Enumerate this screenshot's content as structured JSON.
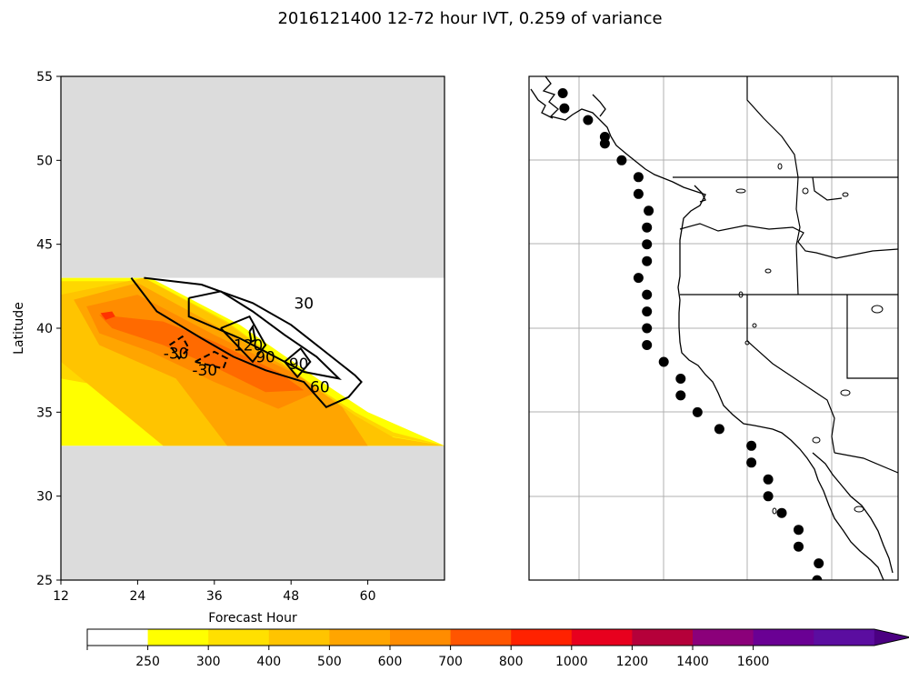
{
  "title": "2016121400 12-72 hour IVT, 0.259 of variance",
  "colors": {
    "missing_band": "#dcdcdc",
    "contour_line": "#000000",
    "map_grid": "#b0b0b0",
    "station_marker": "#000000"
  },
  "chart_data": [
    {
      "type": "heatmap",
      "xlabel": "Forecast Hour",
      "ylabel": "Latitude",
      "xlim": [
        12,
        72
      ],
      "ylim": [
        25,
        55
      ],
      "xticks": [
        12,
        24,
        36,
        48,
        60
      ],
      "yticks": [
        25,
        30,
        35,
        40,
        45,
        50,
        55
      ],
      "missing_bands": [
        {
          "from_lat": 43,
          "to_lat": 55
        },
        {
          "from_lat": 25,
          "to_lat": 33
        }
      ],
      "ivt_levels": [
        {
          "min": 250,
          "color": "#ffff00",
          "polygon": [
            [
              12,
              43
            ],
            [
              26,
              43
            ],
            [
              40,
              40.2
            ],
            [
              54,
              36.5
            ],
            [
              60,
              35
            ],
            [
              72,
              33
            ],
            [
              12,
              33
            ]
          ]
        },
        {
          "min": 300,
          "color": "#ffd700",
          "polygon": [
            [
              12,
              42.8
            ],
            [
              26,
              42.8
            ],
            [
              38,
              40.4
            ],
            [
              50,
              37
            ],
            [
              58,
              35
            ],
            [
              64,
              33.8
            ],
            [
              72,
              33
            ],
            [
              12,
              37
            ]
          ]
        },
        {
          "min": 400,
          "color": "#ffc400",
          "polygon": [
            [
              12,
              42
            ],
            [
              25,
              43
            ],
            [
              38,
              40.3
            ],
            [
              50,
              37
            ],
            [
              58,
              34.8
            ],
            [
              64,
              33.5
            ],
            [
              72,
              33
            ],
            [
              28,
              33
            ],
            [
              12,
              38
            ]
          ]
        },
        {
          "min": 500,
          "color": "#ffa500",
          "polygon": [
            [
              14,
              41.7
            ],
            [
              24,
              42.7
            ],
            [
              36,
              40.2
            ],
            [
              48,
              37.5
            ],
            [
              56,
              35.3
            ],
            [
              60,
              33
            ],
            [
              38,
              33
            ],
            [
              30,
              37
            ],
            [
              18,
              39
            ]
          ]
        },
        {
          "min": 600,
          "color": "#ff8c00",
          "polygon": [
            [
              16,
              41.3
            ],
            [
              24,
              42
            ],
            [
              36,
              39.6
            ],
            [
              48,
              37.4
            ],
            [
              52,
              36.2
            ],
            [
              46,
              35.2
            ],
            [
              36,
              36.8
            ],
            [
              26,
              38.6
            ],
            [
              18,
              39.7
            ]
          ]
        },
        {
          "min": 700,
          "color": "#ff6a00",
          "polygon": [
            [
              18,
              40.8
            ],
            [
              28,
              40.4
            ],
            [
              36,
              39.2
            ],
            [
              46,
              37.4
            ],
            [
              50,
              36.3
            ],
            [
              44,
              36.2
            ],
            [
              36,
              37.7
            ],
            [
              28,
              39
            ],
            [
              20,
              40
            ]
          ]
        },
        {
          "min": 800,
          "color": "#ff3300",
          "polygon": [
            [
              18.2,
              40.9
            ],
            [
              20,
              41
            ],
            [
              20.5,
              40.7
            ],
            [
              19,
              40.5
            ]
          ]
        }
      ],
      "contours": [
        {
          "label": "30",
          "dashed": false,
          "label_at": [
            50,
            41.5
          ],
          "points": [
            [
              25,
              43
            ],
            [
              34,
              42.6
            ],
            [
              42,
              41.5
            ],
            [
              48,
              40.2
            ],
            [
              53,
              38.7
            ],
            [
              58,
              37.2
            ],
            [
              59,
              36.8
            ],
            [
              57,
              35.9
            ],
            [
              53.5,
              35.3
            ],
            [
              50,
              36.8
            ],
            [
              44,
              37.5
            ],
            [
              39,
              38.3
            ],
            [
              34,
              39.4
            ],
            [
              27,
              41
            ],
            [
              23,
              43
            ]
          ]
        },
        {
          "label": "60",
          "dashed": false,
          "label_at": [
            52.5,
            36.5
          ],
          "points": [
            [
              32,
              41.8
            ],
            [
              37,
              42.2
            ],
            [
              42,
              41
            ],
            [
              47,
              39.6
            ],
            [
              52,
              38.3
            ],
            [
              55.5,
              37
            ],
            [
              50,
              37.4
            ],
            [
              45,
              38.4
            ],
            [
              40,
              39.4
            ],
            [
              32,
              40.7
            ],
            [
              32,
              41.8
            ]
          ]
        },
        {
          "label": "90",
          "dashed": false,
          "label_at": [
            44,
            38.3
          ],
          "points": [
            [
              37,
              40
            ],
            [
              41.5,
              40.7
            ],
            [
              44,
              39
            ],
            [
              42,
              38
            ],
            [
              37,
              40
            ]
          ]
        },
        {
          "label": "90",
          "dashed": false,
          "label_at": [
            49.2,
            37.9
          ],
          "points": [
            [
              47,
              38
            ],
            [
              49.5,
              38.8
            ],
            [
              51,
              38
            ],
            [
              49,
              37.1
            ],
            [
              47,
              38
            ]
          ]
        },
        {
          "label": "120",
          "dashed": false,
          "label_at": [
            41.3,
            39
          ],
          "points": [
            [
              41.5,
              39.8
            ],
            [
              42,
              40.1
            ],
            [
              42.4,
              39.3
            ],
            [
              41.8,
              39.2
            ],
            [
              41.5,
              39.8
            ]
          ]
        },
        {
          "label": "-30",
          "dashed": true,
          "label_at": [
            30,
            38.5
          ],
          "points": [
            [
              29,
              39
            ],
            [
              31,
              39.5
            ],
            [
              32,
              38.8
            ],
            [
              30.5,
              38.2
            ],
            [
              29,
              39
            ]
          ]
        },
        {
          "label": "-30",
          "dashed": true,
          "label_at": [
            34.5,
            37.5
          ],
          "points": [
            [
              33,
              38
            ],
            [
              36,
              38.6
            ],
            [
              38,
              38.2
            ],
            [
              37.4,
              37.6
            ],
            [
              33,
              38
            ]
          ]
        }
      ]
    },
    {
      "type": "scatter",
      "series": [
        {
          "values": [
            [
              -129,
              54
            ],
            [
              -128.9,
              53.1
            ],
            [
              -127.5,
              52.4
            ],
            [
              -126.5,
              51.4
            ],
            [
              -126.5,
              51
            ],
            [
              -125.5,
              50
            ],
            [
              -124.5,
              49
            ],
            [
              -124.5,
              48
            ],
            [
              -123.9,
              47
            ],
            [
              -124,
              46
            ],
            [
              -124,
              45
            ],
            [
              -124,
              44
            ],
            [
              -124.5,
              43
            ],
            [
              -124,
              42
            ],
            [
              -124,
              41
            ],
            [
              -124,
              40
            ],
            [
              -124,
              39
            ],
            [
              -123,
              38
            ],
            [
              -122,
              37
            ],
            [
              -122,
              36
            ],
            [
              -121,
              35
            ],
            [
              -119.7,
              34
            ],
            [
              -117.8,
              33
            ],
            [
              -117.8,
              32
            ],
            [
              -116.8,
              31
            ],
            [
              -116.8,
              30
            ],
            [
              -116,
              29
            ],
            [
              -115,
              28
            ],
            [
              -115,
              27
            ],
            [
              -113.8,
              26
            ],
            [
              -113.9,
              25
            ]
          ]
        }
      ]
    }
  ],
  "colorbar": {
    "ticks": [
      "250",
      "300",
      "400",
      "500",
      "600",
      "700",
      "800",
      "1000",
      "1200",
      "1400",
      "1600"
    ],
    "colors": [
      "#ffffff",
      "#ffff00",
      "#ffe000",
      "#ffc400",
      "#ffa500",
      "#ff8c00",
      "#ff5500",
      "#ff2200",
      "#e8001e",
      "#b5003a",
      "#8b007a",
      "#6a0094",
      "#5b0da0"
    ]
  }
}
